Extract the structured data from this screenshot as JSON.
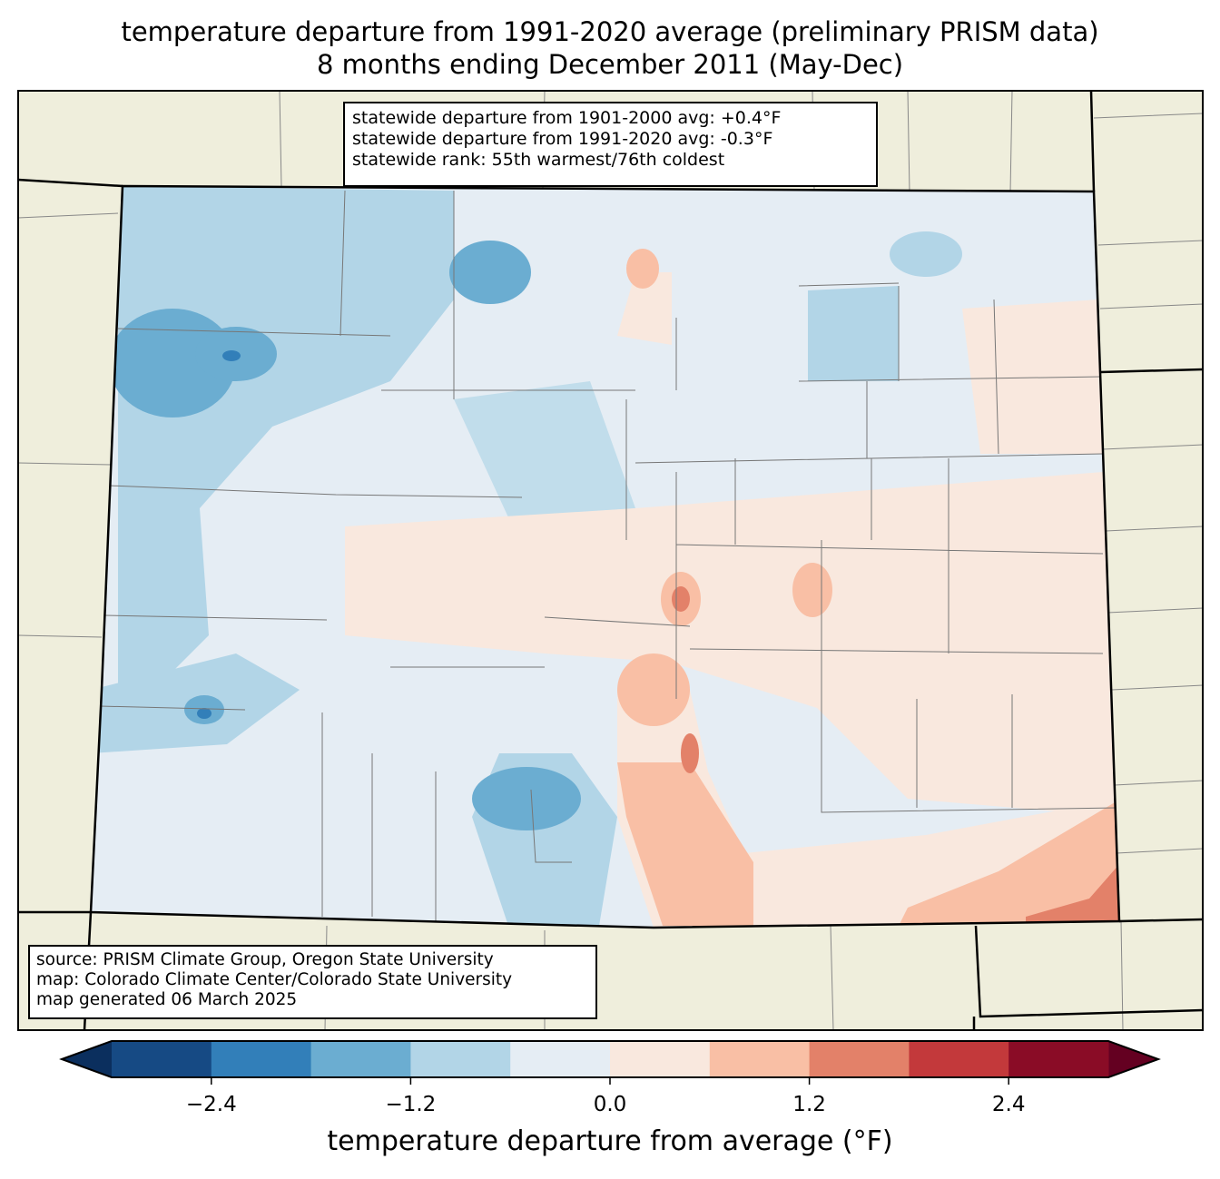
{
  "title": {
    "line1": "temperature departure from 1991-2020 average (preliminary PRISM data)",
    "line2": "8 months ending December 2011 (May-Dec)"
  },
  "stats": {
    "line1": "statewide departure from 1901-2000 avg: +0.4°F",
    "line2": "statewide departure from 1991-2020 avg: -0.3°F",
    "line3": "statewide rank: 55th warmest/76th coldest"
  },
  "source": {
    "line1": "source: PRISM Climate Group, Oregon State University",
    "line2": "map: Colorado Climate Center/Colorado State University",
    "line3": "map generated 06 March 2025"
  },
  "colorbar": {
    "label": "temperature departure from average (°F)",
    "bounds": [
      -3.0,
      -2.4,
      -1.8,
      -1.2,
      -0.6,
      0.0,
      0.6,
      1.2,
      1.8,
      2.4,
      3.0
    ],
    "colors": [
      "#164a84",
      "#327fb9",
      "#6badd1",
      "#b2d5e7",
      "#e5edf4",
      "#f9e8de",
      "#f9bfa5",
      "#e38169",
      "#c3393b",
      "#8a0c26"
    ],
    "under_color": "#0b2f5e",
    "over_color": "#640021",
    "ticks": [
      "−2.4",
      "−1.2",
      "0.0",
      "1.2",
      "2.4"
    ]
  },
  "colors": {
    "land": "#efeedc",
    "neutral": "#e5edf4"
  }
}
